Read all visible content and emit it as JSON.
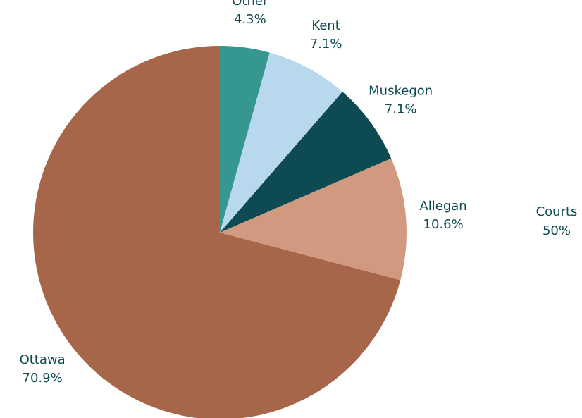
{
  "chart_data": {
    "type": "pie",
    "categories": [
      "Other",
      "Kent",
      "Muskegon",
      "Allegan",
      "Ottawa"
    ],
    "values": [
      4.3,
      7.1,
      7.1,
      10.6,
      70.9
    ],
    "value_labels": [
      "4.3%",
      "7.1%",
      "7.1%",
      "10.6%",
      "70.9%"
    ],
    "colors": [
      "#35978f",
      "#b8d8ee",
      "#0e4a51",
      "#d19a80",
      "#a7664a"
    ],
    "extra_label": {
      "name": "Courts",
      "value_label": "50%"
    }
  }
}
